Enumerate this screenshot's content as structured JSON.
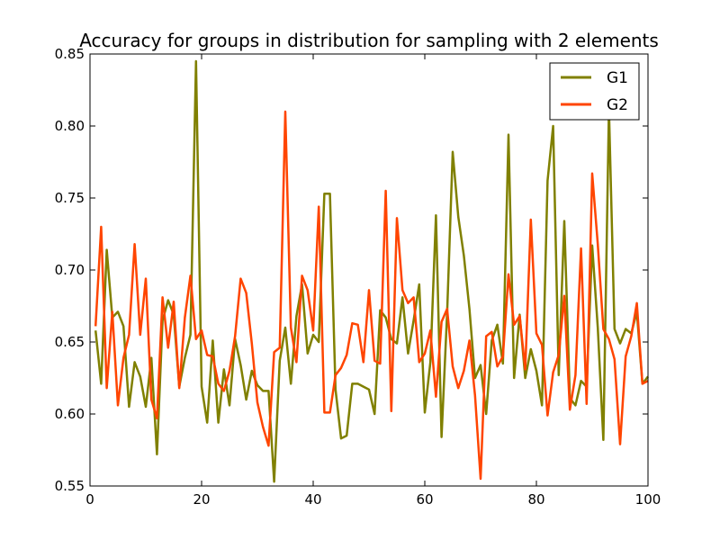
{
  "chart_data": {
    "type": "line",
    "title": "Accuracy for groups in distribution for sampling with 2 elements",
    "xlabel": "",
    "ylabel": "",
    "xlim": [
      0,
      100
    ],
    "ylim": [
      0.55,
      0.85
    ],
    "x_ticks": [
      0,
      20,
      40,
      60,
      80,
      100
    ],
    "y_ticks": [
      "0.55",
      "0.60",
      "0.65",
      "0.70",
      "0.75",
      "0.80",
      "0.85"
    ],
    "grid": false,
    "legend_position": "top-right",
    "x": [
      1,
      2,
      3,
      4,
      5,
      6,
      7,
      8,
      9,
      10,
      11,
      12,
      13,
      14,
      15,
      16,
      17,
      18,
      19,
      20,
      21,
      22,
      23,
      24,
      25,
      26,
      27,
      28,
      29,
      30,
      31,
      32,
      33,
      34,
      35,
      36,
      37,
      38,
      39,
      40,
      41,
      42,
      43,
      44,
      45,
      46,
      47,
      48,
      49,
      50,
      51,
      52,
      53,
      54,
      55,
      56,
      57,
      58,
      59,
      60,
      61,
      62,
      63,
      64,
      65,
      66,
      67,
      68,
      69,
      70,
      71,
      72,
      73,
      74,
      75,
      76,
      77,
      78,
      79,
      80,
      81,
      82,
      83,
      84,
      85,
      86,
      87,
      88,
      89,
      90,
      91,
      92,
      93,
      94,
      95,
      96,
      97,
      98,
      99,
      100
    ],
    "series": [
      {
        "name": "G1",
        "color": "#808000",
        "values": [
          0.658,
          0.621,
          0.714,
          0.667,
          0.671,
          0.661,
          0.605,
          0.636,
          0.626,
          0.605,
          0.639,
          0.572,
          0.665,
          0.679,
          0.669,
          0.619,
          0.639,
          0.655,
          0.845,
          0.619,
          0.594,
          0.651,
          0.594,
          0.631,
          0.606,
          0.652,
          0.634,
          0.61,
          0.63,
          0.62,
          0.616,
          0.616,
          0.553,
          0.637,
          0.66,
          0.621,
          0.668,
          0.69,
          0.642,
          0.655,
          0.65,
          0.753,
          0.753,
          0.617,
          0.583,
          0.585,
          0.621,
          0.621,
          0.619,
          0.617,
          0.6,
          0.672,
          0.667,
          0.652,
          0.649,
          0.681,
          0.642,
          0.665,
          0.69,
          0.601,
          0.636,
          0.738,
          0.584,
          0.67,
          0.782,
          0.737,
          0.71,
          0.673,
          0.625,
          0.634,
          0.6,
          0.651,
          0.662,
          0.635,
          0.794,
          0.625,
          0.669,
          0.625,
          0.645,
          0.63,
          0.606,
          0.762,
          0.8,
          0.627,
          0.734,
          0.611,
          0.606,
          0.623,
          0.619,
          0.717,
          0.66,
          0.582,
          0.812,
          0.659,
          0.649,
          0.659,
          0.656,
          0.671,
          0.621,
          0.626
        ]
      },
      {
        "name": "G2",
        "color": "#ff4500",
        "values": [
          0.661,
          0.73,
          0.618,
          0.671,
          0.606,
          0.639,
          0.655,
          0.718,
          0.655,
          0.694,
          0.61,
          0.597,
          0.681,
          0.646,
          0.678,
          0.618,
          0.667,
          0.696,
          0.652,
          0.658,
          0.641,
          0.64,
          0.621,
          0.616,
          0.63,
          0.654,
          0.694,
          0.684,
          0.649,
          0.608,
          0.591,
          0.578,
          0.643,
          0.646,
          0.81,
          0.66,
          0.636,
          0.696,
          0.686,
          0.658,
          0.744,
          0.601,
          0.601,
          0.627,
          0.632,
          0.641,
          0.663,
          0.662,
          0.636,
          0.686,
          0.637,
          0.635,
          0.755,
          0.602,
          0.736,
          0.686,
          0.677,
          0.681,
          0.636,
          0.642,
          0.658,
          0.612,
          0.664,
          0.673,
          0.633,
          0.618,
          0.63,
          0.651,
          0.613,
          0.555,
          0.654,
          0.657,
          0.633,
          0.64,
          0.697,
          0.662,
          0.668,
          0.631,
          0.735,
          0.656,
          0.648,
          0.599,
          0.629,
          0.641,
          0.682,
          0.603,
          0.627,
          0.715,
          0.607,
          0.767,
          0.718,
          0.659,
          0.652,
          0.638,
          0.579,
          0.64,
          0.654,
          0.677,
          0.621,
          0.623
        ]
      }
    ]
  }
}
